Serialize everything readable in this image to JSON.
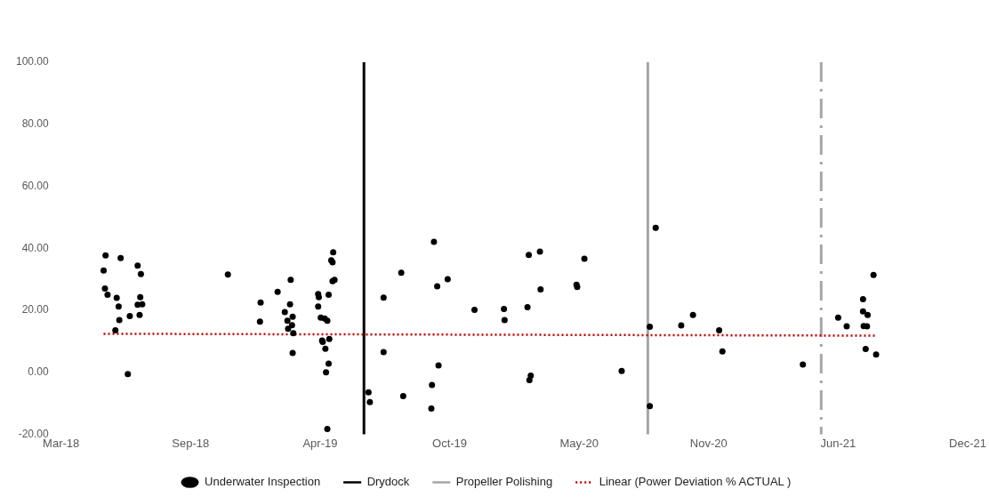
{
  "chart_data": {
    "type": "scatter",
    "xlim": [
      "2018-03-01",
      "2021-12-16"
    ],
    "xticks": [
      {
        "value": "2018-03-01",
        "label": "Mar-18"
      },
      {
        "value": "2018-09-15",
        "label": "Sep-18"
      },
      {
        "value": "2019-04-01",
        "label": "Apr-19"
      },
      {
        "value": "2019-10-16",
        "label": "Oct-19"
      },
      {
        "value": "2020-05-01",
        "label": "May-20"
      },
      {
        "value": "2020-11-15",
        "label": "Nov-20"
      },
      {
        "value": "2021-06-01",
        "label": "Jun-21"
      },
      {
        "value": "2021-12-16",
        "label": "Dec-21"
      }
    ],
    "ylim": [
      -20,
      100
    ],
    "yticks": [
      {
        "value": -20,
        "label": "-20.00"
      },
      {
        "value": 0,
        "label": "0.00"
      },
      {
        "value": 20,
        "label": "20.00"
      },
      {
        "value": 40,
        "label": "40.00"
      },
      {
        "value": 60,
        "label": "60.00"
      },
      {
        "value": 80,
        "label": "80.00"
      },
      {
        "value": 100,
        "label": "100.00"
      }
    ],
    "grid": false,
    "legend": "bottom",
    "marker": "circle",
    "series": [
      {
        "name": "Underwater Inspection",
        "type": "scatter",
        "color": "#000000",
        "x": [
          "2018-05-08",
          "2018-05-05",
          "2018-05-07",
          "2018-05-11",
          "2018-05-25",
          "2018-05-28",
          "2018-05-23",
          "2018-05-29",
          "2018-05-31",
          "2018-06-11",
          "2018-06-14",
          "2018-06-26",
          "2018-07-01",
          "2018-06-30",
          "2018-06-26",
          "2018-07-03",
          "2018-06-29",
          "2018-11-11",
          "2018-12-31",
          "2018-12-30",
          "2019-01-26",
          "2019-02-15",
          "2019-02-14",
          "2019-02-06",
          "2019-02-10",
          "2019-02-18",
          "2019-02-11",
          "2019-02-17",
          "2019-02-19",
          "2019-02-18",
          "2019-03-29",
          "2019-03-30",
          "2019-03-29",
          "2019-04-02",
          "2019-04-08",
          "2019-04-12",
          "2019-04-05",
          "2019-04-04",
          "2019-04-15",
          "2019-04-09",
          "2019-04-14",
          "2019-04-10",
          "2019-04-12",
          "2019-04-14",
          "2019-04-21",
          "2019-04-18",
          "2019-04-20",
          "2019-04-20",
          "2019-04-23",
          "2019-06-14",
          "2019-06-16",
          "2019-07-07",
          "2019-07-07",
          "2019-08-03",
          "2019-08-06",
          "2019-09-22",
          "2019-09-27",
          "2019-10-13",
          "2019-09-29",
          "2019-09-19",
          "2019-09-18",
          "2019-11-23",
          "2020-01-07",
          "2020-01-08",
          "2020-02-12",
          "2020-02-14",
          "2020-03-02",
          "2020-03-03",
          "2020-02-17",
          "2020-02-15",
          "2020-04-27",
          "2020-04-28",
          "2020-05-09",
          "2020-07-05",
          "2020-08-17",
          "2020-08-17",
          "2020-08-26",
          "2020-10-04",
          "2020-10-22",
          "2020-12-01",
          "2020-12-06",
          "2021-04-08",
          "2021-06-01",
          "2021-06-14",
          "2021-07-09",
          "2021-07-09",
          "2021-07-16",
          "2021-07-10",
          "2021-07-15",
          "2021-07-13",
          "2021-07-25",
          "2021-07-29"
        ],
        "values": [
          37.7,
          32.8,
          27.0,
          25.0,
          24.0,
          21.2,
          13.5,
          16.8,
          36.8,
          -0.6,
          18.1,
          34.4,
          31.7,
          24.2,
          21.8,
          21.9,
          18.5,
          31.5,
          22.5,
          16.3,
          25.9,
          29.8,
          21.9,
          19.4,
          16.6,
          17.9,
          14.0,
          15.2,
          12.6,
          6.2,
          25.2,
          24.2,
          21.2,
          17.6,
          17.3,
          16.6,
          9.8,
          10.2,
          10.7,
          7.6,
          2.8,
          0.0,
          -18.3,
          25.0,
          38.7,
          36.1,
          35.5,
          29.4,
          29.8,
          -6.5,
          -9.6,
          24.1,
          6.5,
          32.1,
          -7.7,
          42.1,
          27.7,
          30.0,
          2.2,
          -4.1,
          -11.7,
          20.1,
          20.4,
          16.8,
          21.0,
          37.8,
          38.9,
          26.7,
          -1.1,
          -2.5,
          28.2,
          27.5,
          36.6,
          0.4,
          14.7,
          -10.9,
          46.6,
          15.1,
          18.5,
          13.5,
          6.7,
          2.5,
          17.6,
          14.8,
          23.6,
          19.6,
          18.5,
          14.9,
          14.8,
          7.5,
          31.4,
          5.7
        ]
      },
      {
        "name": "Linear (Power Deviation % ACTUAL )",
        "type": "line",
        "color": "#c00000",
        "line_style": "dotted",
        "marker": "none",
        "x": [
          "2018-05-05",
          "2021-07-28"
        ],
        "values": [
          12.4,
          11.8
        ]
      }
    ],
    "ref_lines": [
      {
        "axis": "x",
        "value": "2019-06-07",
        "label": "Drydock",
        "color": "#000000",
        "line_style": "solid"
      },
      {
        "axis": "x",
        "value": "2020-08-14",
        "label": "Propeller Polishing",
        "color": "#a6a6a6",
        "line_style": "solid"
      },
      {
        "axis": "x",
        "value": "2021-05-06",
        "color": "#a6a6a6",
        "line_style": "dashdot"
      }
    ]
  }
}
